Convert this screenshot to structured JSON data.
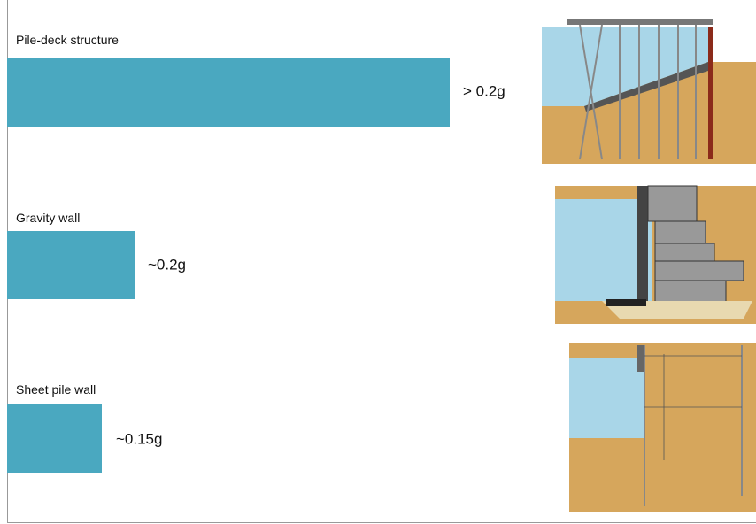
{
  "items": [
    {
      "label": "Pile-deck structure",
      "value_text": "> 0.2g"
    },
    {
      "label": "Gravity wall",
      "value_text": "~0.2g"
    },
    {
      "label": "Sheet pile wall",
      "value_text": "~0.15g"
    }
  ]
}
